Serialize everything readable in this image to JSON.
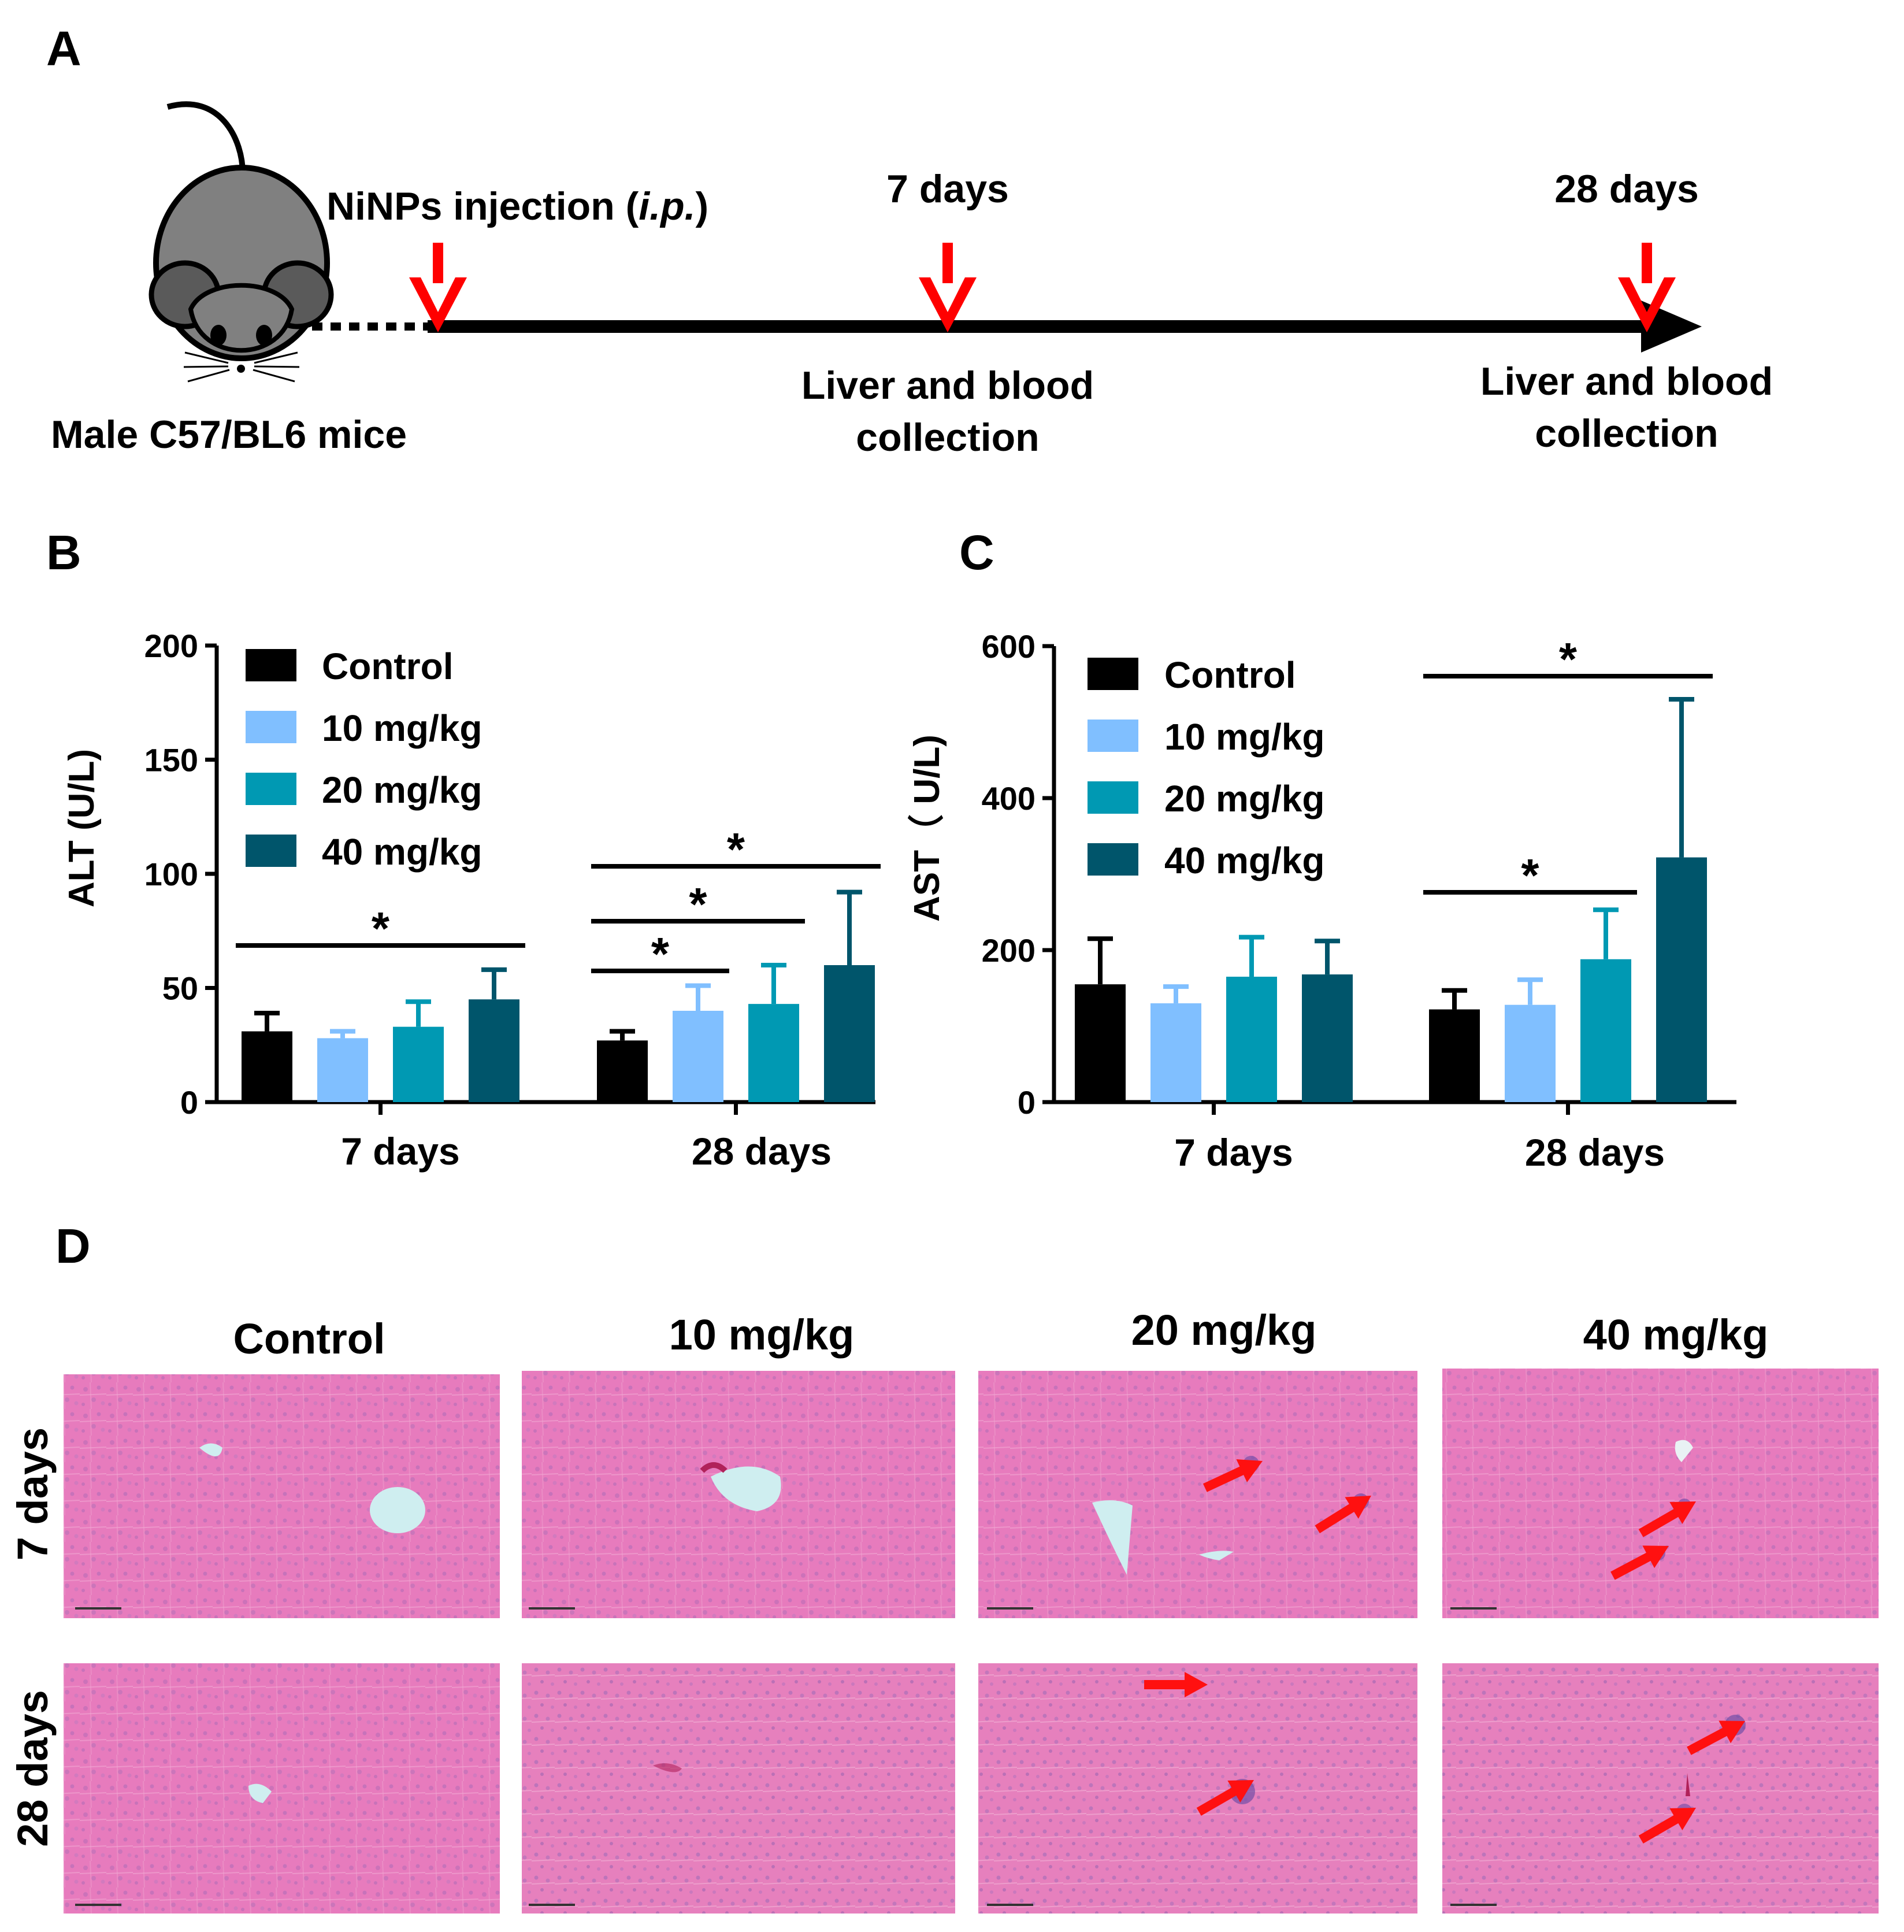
{
  "panels": {
    "a": "A",
    "b": "B",
    "c": "C",
    "d": "D"
  },
  "timeline": {
    "mouse_label": "Male C57/BL6 mice",
    "injection_label": "NiNPs injection (",
    "injection_italic": "i.p.",
    "injection_close": ")",
    "day7_label": "7 days",
    "day28_label": "28 days",
    "collection_line1": "Liver and blood",
    "collection_line2": "collection"
  },
  "colors": {
    "control": "#000000",
    "dose10": "#80bfff",
    "dose20": "#0099b3",
    "dose40": "#00556b",
    "arrow": "#ff0000"
  },
  "legend": [
    "Control",
    "10 mg/kg",
    "20 mg/kg",
    "40 mg/kg"
  ],
  "chart_data": [
    {
      "panel": "B",
      "type": "bar",
      "ylabel": "ALT (U/L)",
      "ylim": [
        0,
        200
      ],
      "yticks": [
        "0",
        "50",
        "100",
        "150",
        "200"
      ],
      "categories": [
        "7 days",
        "28 days"
      ],
      "series": [
        {
          "name": "Control",
          "values": [
            31,
            27
          ],
          "errors": [
            8,
            4
          ]
        },
        {
          "name": "10 mg/kg",
          "values": [
            28,
            40
          ],
          "errors": [
            3,
            11
          ]
        },
        {
          "name": "20 mg/kg",
          "values": [
            33,
            43
          ],
          "errors": [
            11,
            17
          ]
        },
        {
          "name": "40 mg/kg",
          "values": [
            45,
            60
          ],
          "errors": [
            13,
            32
          ]
        }
      ],
      "significance": [
        {
          "category": 0,
          "from": 0,
          "to": 3,
          "label": "*"
        },
        {
          "category": 1,
          "from": 0,
          "to": 1,
          "label": "*"
        },
        {
          "category": 1,
          "from": 0,
          "to": 2,
          "label": "*"
        },
        {
          "category": 1,
          "from": 0,
          "to": 3,
          "label": "*"
        }
      ]
    },
    {
      "panel": "C",
      "type": "bar",
      "ylabel": "AST（ U/L)",
      "ylim": [
        0,
        600
      ],
      "yticks": [
        "0",
        "200",
        "400",
        "600"
      ],
      "categories": [
        "7 days",
        "28 days"
      ],
      "series": [
        {
          "name": "Control",
          "values": [
            155,
            122
          ],
          "errors": [
            60,
            25
          ]
        },
        {
          "name": "10 mg/kg",
          "values": [
            130,
            128
          ],
          "errors": [
            22,
            33
          ]
        },
        {
          "name": "20 mg/kg",
          "values": [
            165,
            188
          ],
          "errors": [
            52,
            65
          ]
        },
        {
          "name": "40 mg/kg",
          "values": [
            168,
            322
          ],
          "errors": [
            44,
            208
          ]
        }
      ],
      "significance": [
        {
          "category": 1,
          "from": 0,
          "to": 2,
          "label": "*"
        },
        {
          "category": 1,
          "from": 0,
          "to": 3,
          "label": "*"
        }
      ]
    }
  ],
  "histology": {
    "columns": [
      "Control",
      "10 mg/kg",
      "20 mg/kg",
      "40 mg/kg"
    ],
    "rows": [
      "7 days",
      "28 days"
    ]
  }
}
